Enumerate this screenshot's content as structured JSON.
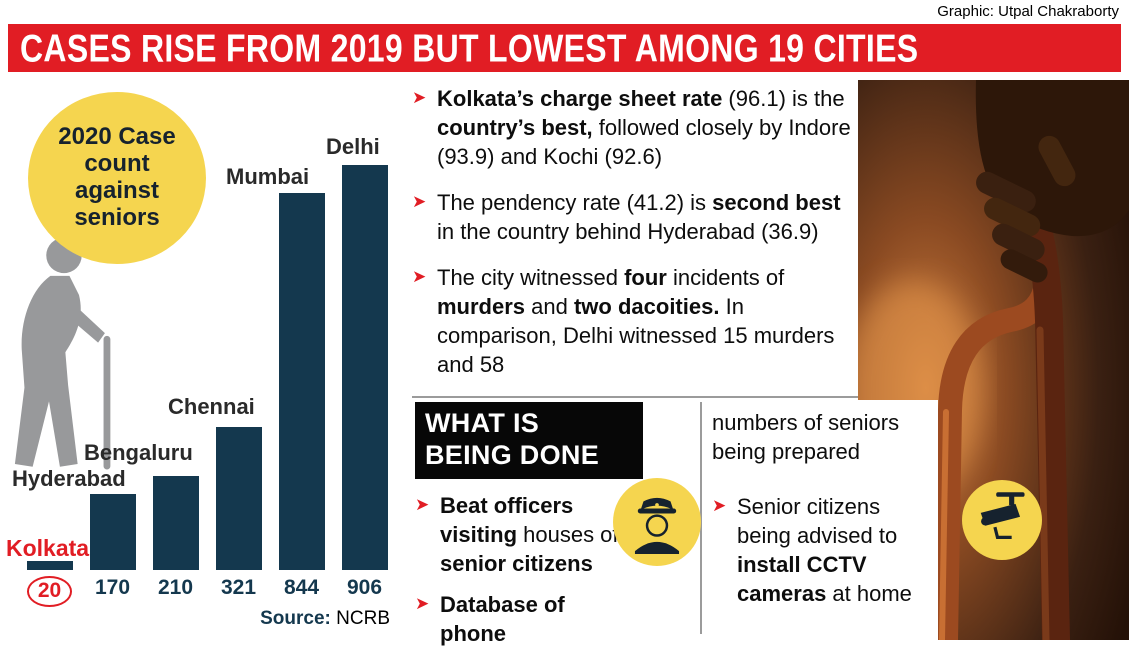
{
  "credit": "Graphic: Utpal Chakraborty",
  "header": {
    "title": "CASES RISE FROM 2019 BUT LOWEST AMONG 19 CITIES"
  },
  "icons": {
    "bullet_arrow": "➤"
  },
  "chart": {
    "badge": "2020 Case count against seniors",
    "source_label": "Source:",
    "source_value": "NCRB"
  },
  "chart_data": {
    "type": "bar",
    "title": "2020 Case count against seniors",
    "categories": [
      "Kolkata",
      "Hyderabad",
      "Bengaluru",
      "Chennai",
      "Mumbai",
      "Delhi"
    ],
    "values": [
      20,
      170,
      210,
      321,
      844,
      906
    ],
    "source": "Source: NCRB",
    "ylim": [
      0,
      950
    ],
    "grid": false,
    "legend": "none",
    "bar_color": "#14384e",
    "highlight": {
      "category": "Kolkata",
      "label_color": "#e11d24",
      "value_circled": true
    }
  },
  "facts": [
    {
      "segments": [
        {
          "t": "Kolkata’s charge sheet rate",
          "b": true
        },
        {
          "t": " (96.1) is the ",
          "b": false
        },
        {
          "t": "country’s best,",
          "b": true
        },
        {
          "t": " followed closely by Indore (93.9) and Kochi (92.6)",
          "b": false
        }
      ]
    },
    {
      "segments": [
        {
          "t": "The pendency rate (41.2) is ",
          "b": false
        },
        {
          "t": "second best",
          "b": true
        },
        {
          "t": " in the country behind Hyderabad (36.9)",
          "b": false
        }
      ]
    },
    {
      "segments": [
        {
          "t": "The city witnessed ",
          "b": false
        },
        {
          "t": "four",
          "b": true
        },
        {
          "t": " incidents of ",
          "b": false
        },
        {
          "t": "murders",
          "b": true
        },
        {
          "t": " and ",
          "b": false
        },
        {
          "t": "two dacoities.",
          "b": true
        },
        {
          "t": " In comparison, Delhi witnessed 15 murders and 58",
          "b": false
        }
      ]
    }
  ],
  "actions": {
    "heading": "WHAT IS BEING DONE",
    "left_bullets": [
      {
        "segments": [
          {
            "t": "Beat officers visiting",
            "b": true
          },
          {
            "t": " houses of ",
            "b": false
          },
          {
            "t": "senior citizens",
            "b": true
          }
        ]
      },
      {
        "segments": [
          {
            "t": "Database of phone",
            "b": true
          }
        ]
      }
    ],
    "right_continuation": {
      "segments": [
        {
          "t": "numbers of seniors being prepared",
          "b": false
        }
      ]
    },
    "right_bullets": [
      {
        "segments": [
          {
            "t": "Senior citizens being advised to ",
            "b": false
          },
          {
            "t": "install CCTV cameras",
            "b": true
          },
          {
            "t": " at home",
            "b": false
          }
        ]
      }
    ]
  },
  "colors": {
    "accent_red": "#e11d24",
    "bar_navy": "#14384e",
    "badge_yellow": "#f5d54f"
  }
}
